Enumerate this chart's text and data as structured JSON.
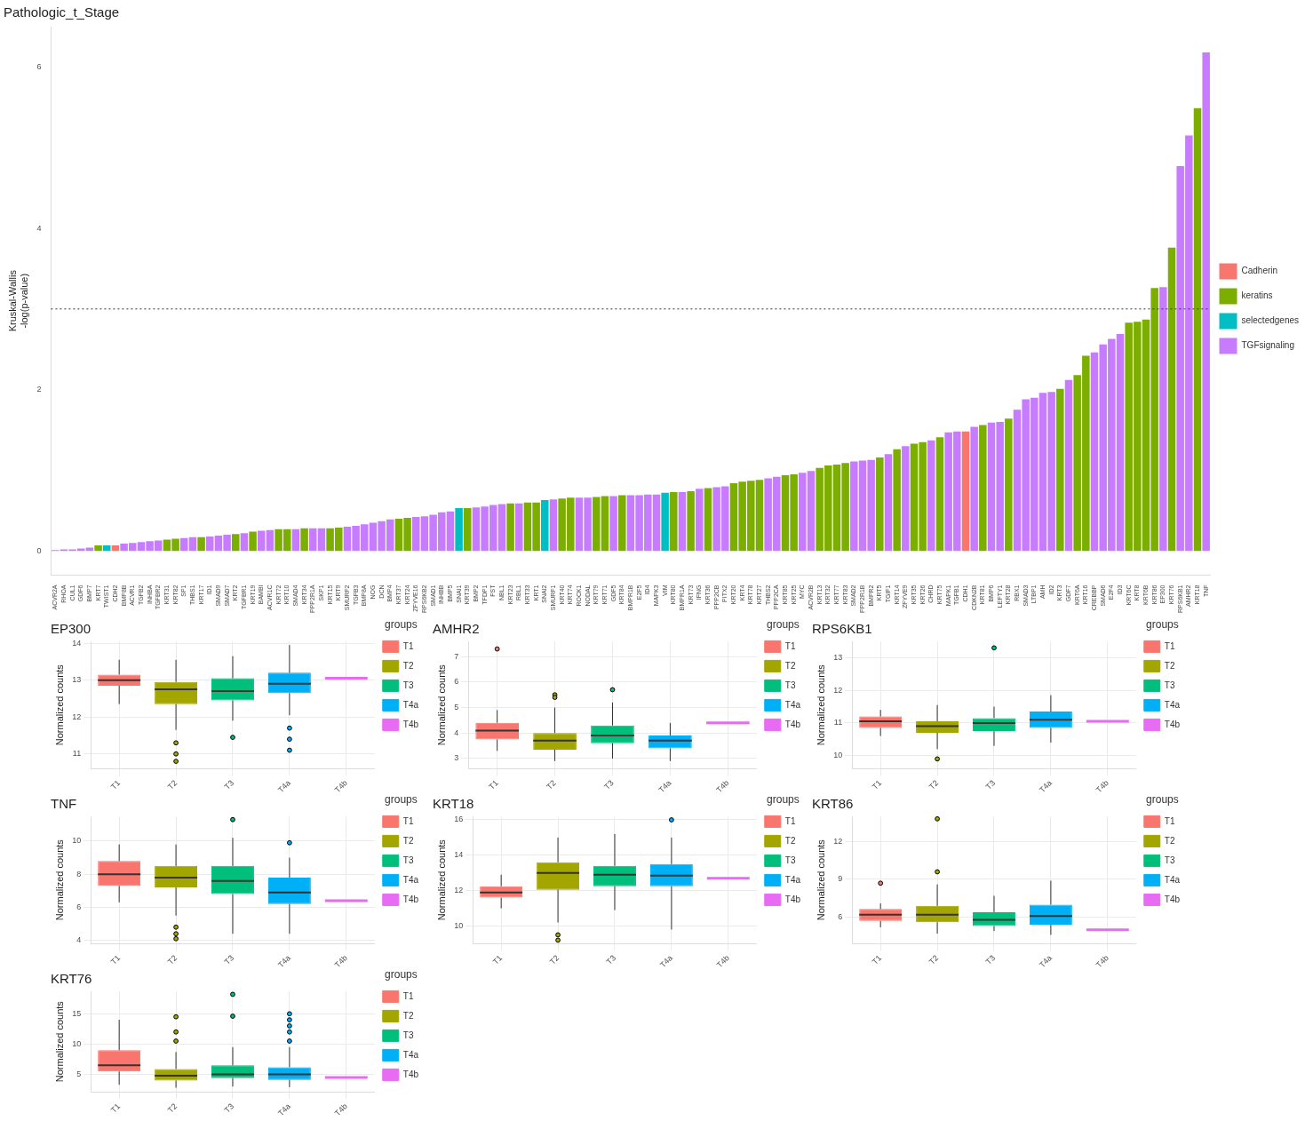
{
  "chart_data": [
    {
      "type": "bar",
      "title": "Pathologic_t_Stage",
      "ylabel": "Kruskal-Wallis\n-log(p-value)",
      "categories": [
        "ACVR2A",
        "RHOA",
        "CUL1",
        "GDF6",
        "BMP7",
        "KRT7",
        "TWIST1",
        "CDH2",
        "BMP8B",
        "ACVR1",
        "TGFB2",
        "INHBA",
        "TGFBR2",
        "KRT31",
        "KRT82",
        "SP1",
        "THBS1",
        "KRT17",
        "ID1",
        "SMAD9",
        "SMAD7",
        "KRT2",
        "TGFBR1",
        "KRT19",
        "BAMBI",
        "ACVR1C",
        "KRT72",
        "KRT10",
        "SMAD4",
        "KRT34",
        "PPP2R1A",
        "SKP1",
        "KRT15",
        "KRT9",
        "SMURF2",
        "TGFB3",
        "BMP8A",
        "NOG",
        "DCN",
        "BMP4",
        "KRT37",
        "KRT24",
        "ZFYVE16",
        "RPS6KB2",
        "SMAD1",
        "INHBB",
        "BMP5",
        "SNAI1",
        "KRT39",
        "BMP2",
        "TFDP1",
        "FST",
        "NBL1",
        "KRT23",
        "RBL1",
        "KRT33",
        "KRT1",
        "SNAI2",
        "SMURF1",
        "KRT40",
        "KRT74",
        "ROCK1",
        "NODAL",
        "KRT79",
        "KRT71",
        "GDF5",
        "KRT84",
        "BMPR1B",
        "E2F5",
        "ID4",
        "MAPK3",
        "VIM",
        "KRT80",
        "BMPR1A",
        "KRT73",
        "IFNG",
        "KRT36",
        "PPP2CB",
        "PITX2",
        "KRT20",
        "KRT4",
        "KRT78",
        "KRT27",
        "THBS2",
        "PPP2CA",
        "KRT85",
        "KRT25",
        "MYC",
        "ACVR2B",
        "KRT13",
        "KRT32",
        "KRT77",
        "KRT83",
        "SMAD2",
        "PPP2R1B",
        "BMPR2",
        "KRT5",
        "TGIF1",
        "KRT14",
        "ZFYVE9",
        "KRT35",
        "KRT26",
        "CHRD",
        "KRT75",
        "MAPK1",
        "TGFB1",
        "CDH1",
        "CDKN2B",
        "KRT81",
        "BMP6",
        "LEFTY1",
        "KRT28",
        "RBX1",
        "SMAD3",
        "LTBP1",
        "AMH",
        "ID2",
        "KRT3",
        "GDF7",
        "KRT6A",
        "KRT16",
        "CREBBP",
        "SMAD6",
        "E2F4",
        "ID3",
        "KRT6C",
        "KRT8",
        "KRT6B",
        "KRT86",
        "EP300",
        "KRT76",
        "RPS6KB1",
        "AMHR2",
        "KRT18",
        "TNF"
      ],
      "series": [
        {
          "name": "Cadherin",
          "color": "#f8766d",
          "values": [
            null,
            null,
            null,
            null,
            null,
            null,
            null,
            0.07,
            null,
            null,
            null,
            null,
            null,
            null,
            null,
            null,
            null,
            null,
            null,
            null,
            null,
            null,
            null,
            null,
            null,
            null,
            null,
            null,
            null,
            null,
            null,
            null,
            null,
            null,
            null,
            null,
            null,
            null,
            null,
            null,
            null,
            null,
            null,
            null,
            null,
            null,
            null,
            null,
            null,
            null,
            null,
            null,
            null,
            null,
            null,
            null,
            null,
            null,
            null,
            null,
            null,
            null,
            null,
            null,
            null,
            null,
            null,
            null,
            null,
            null,
            null,
            null,
            null,
            null,
            null,
            null,
            null,
            null,
            null,
            null,
            null,
            null,
            null,
            null,
            null,
            null,
            null,
            null,
            null,
            null,
            null,
            null,
            null,
            null,
            null,
            null,
            null,
            null,
            null,
            null,
            null,
            null,
            null,
            null,
            null,
            null,
            1.48,
            null,
            null,
            null,
            null,
            null,
            null,
            null,
            null,
            null,
            null,
            null,
            null,
            null,
            null,
            null,
            null,
            null,
            null,
            null,
            null,
            null,
            null,
            null,
            null,
            null,
            null,
            null,
            null
          ]
        },
        {
          "name": "keratins",
          "color": "#7cae00",
          "values": [
            null,
            null,
            null,
            null,
            null,
            0.07,
            null,
            null,
            null,
            null,
            null,
            null,
            null,
            0.14,
            0.15,
            null,
            null,
            0.17,
            null,
            null,
            null,
            0.21,
            null,
            0.24,
            null,
            null,
            0.27,
            0.27,
            null,
            0.28,
            null,
            null,
            0.28,
            0.29,
            null,
            null,
            null,
            null,
            null,
            null,
            0.4,
            0.41,
            null,
            null,
            null,
            null,
            null,
            null,
            0.53,
            null,
            null,
            null,
            null,
            0.59,
            null,
            0.6,
            0.6,
            null,
            null,
            0.65,
            0.66,
            null,
            null,
            0.67,
            0.68,
            null,
            0.69,
            null,
            null,
            null,
            null,
            null,
            0.73,
            null,
            0.74,
            null,
            0.78,
            null,
            null,
            0.84,
            0.86,
            0.87,
            0.88,
            null,
            null,
            0.94,
            0.95,
            null,
            null,
            1.03,
            1.06,
            1.07,
            1.09,
            null,
            null,
            null,
            1.16,
            null,
            1.26,
            null,
            1.33,
            1.35,
            null,
            1.41,
            null,
            null,
            null,
            null,
            1.56,
            null,
            null,
            1.64,
            null,
            null,
            null,
            null,
            null,
            2.01,
            null,
            2.18,
            2.42,
            null,
            null,
            null,
            null,
            2.83,
            2.84,
            2.87,
            3.26,
            null,
            3.76,
            null,
            null,
            5.49,
            null
          ]
        },
        {
          "name": "selectedgenes",
          "color": "#00bfc4",
          "values": [
            null,
            null,
            null,
            null,
            null,
            null,
            0.07,
            null,
            null,
            null,
            null,
            null,
            null,
            null,
            null,
            null,
            null,
            null,
            null,
            null,
            null,
            null,
            null,
            null,
            null,
            null,
            null,
            null,
            null,
            null,
            null,
            null,
            null,
            null,
            null,
            null,
            null,
            null,
            null,
            null,
            null,
            null,
            null,
            null,
            null,
            null,
            null,
            0.53,
            null,
            null,
            null,
            null,
            null,
            null,
            null,
            null,
            null,
            0.63,
            null,
            null,
            null,
            null,
            null,
            null,
            null,
            null,
            null,
            null,
            null,
            null,
            null,
            0.72,
            null,
            null,
            null,
            null,
            null,
            null,
            null,
            null,
            null,
            null,
            null,
            null,
            null,
            null,
            null,
            null,
            null,
            null,
            null,
            null,
            null,
            null,
            null,
            null,
            null,
            null,
            null,
            null,
            null,
            null,
            null,
            null,
            null,
            null,
            null,
            null,
            null,
            null,
            null,
            null,
            null,
            null,
            null,
            null,
            null,
            null,
            null,
            null,
            null,
            null,
            null,
            null,
            null,
            null,
            null,
            null,
            null,
            null,
            null,
            null,
            null,
            null,
            null
          ]
        },
        {
          "name": "TGFsignaling",
          "color": "#c77cff",
          "values": [
            0.01,
            0.02,
            0.02,
            0.03,
            0.04,
            null,
            null,
            null,
            0.09,
            0.1,
            0.11,
            0.12,
            0.13,
            null,
            null,
            0.16,
            0.17,
            null,
            0.18,
            0.19,
            0.2,
            null,
            0.22,
            null,
            0.25,
            0.26,
            null,
            null,
            0.27,
            null,
            0.28,
            0.28,
            null,
            null,
            0.3,
            0.31,
            0.33,
            0.35,
            0.37,
            0.39,
            null,
            null,
            0.42,
            0.43,
            0.45,
            0.48,
            0.49,
            null,
            null,
            0.54,
            0.55,
            0.57,
            0.58,
            null,
            0.59,
            null,
            null,
            null,
            0.64,
            null,
            null,
            0.66,
            0.66,
            null,
            null,
            0.68,
            null,
            0.69,
            0.69,
            0.7,
            0.7,
            null,
            null,
            0.73,
            null,
            0.77,
            null,
            0.79,
            0.8,
            null,
            null,
            null,
            null,
            0.9,
            0.92,
            null,
            null,
            0.97,
            0.99,
            null,
            null,
            null,
            null,
            1.11,
            1.12,
            1.13,
            null,
            1.2,
            null,
            1.3,
            null,
            null,
            1.37,
            null,
            1.47,
            1.48,
            null,
            1.54,
            null,
            1.59,
            1.6,
            null,
            1.75,
            1.88,
            1.9,
            1.96,
            1.97,
            null,
            2.12,
            null,
            null,
            2.46,
            2.56,
            2.63,
            2.69,
            null,
            null,
            null,
            null,
            3.27,
            null,
            4.77,
            5.15,
            null,
            6.18
          ]
        }
      ],
      "ylim": [
        -0.3,
        6.5
      ],
      "yticks": [
        0,
        2,
        4,
        6
      ],
      "ref_lines": [
        {
          "axis": "y",
          "value": 3,
          "line_style": "dotted"
        }
      ],
      "legend": "right",
      "grid": false
    },
    {
      "type": "box",
      "title": "EP300",
      "ylabel": "Normalized counts",
      "categories": [
        "T1",
        "T2",
        "T3",
        "T4a",
        "T4b"
      ],
      "legend": "right",
      "legend_title": "groups",
      "grid": true,
      "ylim": [
        10.6,
        14.05
      ],
      "yticks": [
        11,
        12,
        13,
        14
      ],
      "series": [
        {
          "name": "T1",
          "color": "#f8766d",
          "boxes": [
            {
              "low": 12.35,
              "q1": 12.85,
              "median": 13.0,
              "q3": 13.15,
              "high": 13.55
            },
            null,
            null,
            null,
            null
          ]
        },
        {
          "name": "T2",
          "color": "#a3a500",
          "boxes": [
            null,
            {
              "low": 11.65,
              "q1": 12.35,
              "median": 12.75,
              "q3": 12.95,
              "high": 13.55,
              "outliers": [
                11.3,
                11.0,
                10.8
              ]
            },
            null,
            null,
            null
          ]
        },
        {
          "name": "T3",
          "color": "#00bf7d",
          "boxes": [
            null,
            null,
            {
              "low": 11.9,
              "q1": 12.45,
              "median": 12.7,
              "q3": 13.05,
              "high": 13.65,
              "outliers": [
                11.45
              ]
            },
            null,
            null
          ]
        },
        {
          "name": "T4a",
          "color": "#00b0f6",
          "boxes": [
            null,
            null,
            null,
            {
              "low": 12.05,
              "q1": 12.65,
              "median": 12.9,
              "q3": 13.2,
              "high": 13.95,
              "outliers": [
                11.7,
                11.4,
                11.1
              ]
            },
            null
          ]
        },
        {
          "name": "T4b",
          "color": "#e76bf3",
          "boxes": [
            null,
            null,
            null,
            null,
            {
              "low": 13.05,
              "q1": 13.05,
              "median": 13.05,
              "q3": 13.05,
              "high": 13.05
            }
          ]
        }
      ]
    },
    {
      "type": "box",
      "title": "AMHR2",
      "ylabel": "Normalized counts",
      "categories": [
        "T1",
        "T2",
        "T3",
        "T4a",
        "T4b"
      ],
      "legend": "right",
      "legend_title": "groups",
      "grid": true,
      "ylim": [
        2.6,
        7.6
      ],
      "yticks": [
        3,
        4,
        5,
        6,
        7
      ],
      "series": [
        {
          "name": "T1",
          "color": "#f8766d",
          "boxes": [
            {
              "low": 3.3,
              "q1": 3.75,
              "median": 4.1,
              "q3": 4.4,
              "high": 4.9,
              "outliers": [
                7.3
              ]
            },
            null,
            null,
            null,
            null
          ]
        },
        {
          "name": "T2",
          "color": "#a3a500",
          "boxes": [
            null,
            {
              "low": 2.9,
              "q1": 3.35,
              "median": 3.7,
              "q3": 4.0,
              "high": 5.0,
              "outliers": [
                5.4,
                5.5
              ]
            },
            null,
            null,
            null
          ]
        },
        {
          "name": "T3",
          "color": "#00bf7d",
          "boxes": [
            null,
            null,
            {
              "low": 3.0,
              "q1": 3.6,
              "median": 3.9,
              "q3": 4.3,
              "high": 5.2,
              "outliers": [
                5.7
              ]
            },
            null,
            null
          ]
        },
        {
          "name": "T4a",
          "color": "#00b0f6",
          "boxes": [
            null,
            null,
            null,
            {
              "low": 2.9,
              "q1": 3.4,
              "median": 3.7,
              "q3": 3.9,
              "high": 4.4
            },
            null
          ]
        },
        {
          "name": "T4b",
          "color": "#e76bf3",
          "boxes": [
            null,
            null,
            null,
            null,
            {
              "low": 4.4,
              "q1": 4.4,
              "median": 4.4,
              "q3": 4.4,
              "high": 4.4
            }
          ]
        }
      ]
    },
    {
      "type": "box",
      "title": "RPS6KB1",
      "ylabel": "Normalized counts",
      "categories": [
        "T1",
        "T2",
        "T3",
        "T4a",
        "T4b"
      ],
      "legend": "right",
      "legend_title": "groups",
      "grid": true,
      "ylim": [
        9.6,
        13.5
      ],
      "yticks": [
        10,
        11,
        12,
        13
      ],
      "series": [
        {
          "name": "T1",
          "color": "#f8766d",
          "boxes": [
            {
              "low": 10.6,
              "q1": 10.85,
              "median": 11.05,
              "q3": 11.2,
              "high": 11.4
            },
            null,
            null,
            null,
            null
          ]
        },
        {
          "name": "T2",
          "color": "#a3a500",
          "boxes": [
            null,
            {
              "low": 10.2,
              "q1": 10.7,
              "median": 10.9,
              "q3": 11.05,
              "high": 11.55,
              "outliers": [
                9.9
              ]
            },
            null,
            null,
            null
          ]
        },
        {
          "name": "T3",
          "color": "#00bf7d",
          "boxes": [
            null,
            null,
            {
              "low": 10.3,
              "q1": 10.75,
              "median": 11.0,
              "q3": 11.15,
              "high": 11.5,
              "outliers": [
                13.3
              ]
            },
            null,
            null
          ]
        },
        {
          "name": "T4a",
          "color": "#00b0f6",
          "boxes": [
            null,
            null,
            null,
            {
              "low": 10.4,
              "q1": 10.85,
              "median": 11.1,
              "q3": 11.35,
              "high": 11.85
            },
            null
          ]
        },
        {
          "name": "T4b",
          "color": "#e76bf3",
          "boxes": [
            null,
            null,
            null,
            null,
            {
              "low": 11.05,
              "q1": 11.05,
              "median": 11.05,
              "q3": 11.05,
              "high": 11.05
            }
          ]
        }
      ]
    },
    {
      "type": "box",
      "title": "TNF",
      "ylabel": "Normalized counts",
      "categories": [
        "T1",
        "T2",
        "T3",
        "T4a",
        "T4b"
      ],
      "legend": "right",
      "legend_title": "groups",
      "grid": true,
      "ylim": [
        3.8,
        11.5
      ],
      "yticks": [
        4,
        6,
        8,
        10
      ],
      "series": [
        {
          "name": "T1",
          "color": "#f8766d",
          "boxes": [
            {
              "low": 6.3,
              "q1": 7.3,
              "median": 8.0,
              "q3": 8.8,
              "high": 9.8
            },
            null,
            null,
            null,
            null
          ]
        },
        {
          "name": "T2",
          "color": "#a3a500",
          "boxes": [
            null,
            {
              "low": 5.5,
              "q1": 7.2,
              "median": 7.8,
              "q3": 8.5,
              "high": 9.8,
              "outliers": [
                4.8,
                4.4,
                4.1
              ]
            },
            null,
            null,
            null
          ]
        },
        {
          "name": "T3",
          "color": "#00bf7d",
          "boxes": [
            null,
            null,
            {
              "low": 4.4,
              "q1": 6.8,
              "median": 7.6,
              "q3": 8.5,
              "high": 10.2,
              "outliers": [
                11.3
              ]
            },
            null,
            null
          ]
        },
        {
          "name": "T4a",
          "color": "#00b0f6",
          "boxes": [
            null,
            null,
            null,
            {
              "low": 4.4,
              "q1": 6.2,
              "median": 6.9,
              "q3": 7.8,
              "high": 9.0,
              "outliers": [
                9.9
              ]
            },
            null
          ]
        },
        {
          "name": "T4b",
          "color": "#e76bf3",
          "boxes": [
            null,
            null,
            null,
            null,
            {
              "low": 6.4,
              "q1": 6.4,
              "median": 6.4,
              "q3": 6.4,
              "high": 6.4
            }
          ]
        }
      ]
    },
    {
      "type": "box",
      "title": "KRT18",
      "ylabel": "Normalized counts",
      "categories": [
        "T1",
        "T2",
        "T3",
        "T4a",
        "T4b"
      ],
      "legend": "right",
      "legend_title": "groups",
      "grid": true,
      "ylim": [
        9,
        16.2
      ],
      "yticks": [
        10,
        12,
        14,
        16
      ],
      "series": [
        {
          "name": "T1",
          "color": "#f8766d",
          "boxes": [
            {
              "low": 11.0,
              "q1": 11.6,
              "median": 11.9,
              "q3": 12.25,
              "high": 12.9
            },
            null,
            null,
            null,
            null
          ]
        },
        {
          "name": "T2",
          "color": "#a3a500",
          "boxes": [
            null,
            {
              "low": 10.2,
              "q1": 12.05,
              "median": 13.0,
              "q3": 13.6,
              "high": 15.0,
              "outliers": [
                9.5,
                9.2
              ]
            },
            null,
            null,
            null
          ]
        },
        {
          "name": "T3",
          "color": "#00bf7d",
          "boxes": [
            null,
            null,
            {
              "low": 10.9,
              "q1": 12.25,
              "median": 12.9,
              "q3": 13.4,
              "high": 15.2
            },
            null,
            null
          ]
        },
        {
          "name": "T4a",
          "color": "#00b0f6",
          "boxes": [
            null,
            null,
            null,
            {
              "low": 9.8,
              "q1": 12.25,
              "median": 12.85,
              "q3": 13.5,
              "high": 15.0,
              "outliers": [
                16.0
              ]
            },
            null
          ]
        },
        {
          "name": "T4b",
          "color": "#e76bf3",
          "boxes": [
            null,
            null,
            null,
            null,
            {
              "low": 12.7,
              "q1": 12.7,
              "median": 12.7,
              "q3": 12.7,
              "high": 12.7
            }
          ]
        }
      ]
    },
    {
      "type": "box",
      "title": "KRT86",
      "ylabel": "Normalized counts",
      "categories": [
        "T1",
        "T2",
        "T3",
        "T4a",
        "T4b"
      ],
      "legend": "right",
      "legend_title": "groups",
      "grid": true,
      "ylim": [
        3.9,
        14
      ],
      "yticks": [
        6,
        9,
        12
      ],
      "series": [
        {
          "name": "T1",
          "color": "#f8766d",
          "boxes": [
            {
              "low": 5.2,
              "q1": 5.7,
              "median": 6.2,
              "q3": 6.65,
              "high": 7.1,
              "outliers": [
                8.7
              ]
            },
            null,
            null,
            null,
            null
          ]
        },
        {
          "name": "T2",
          "color": "#a3a500",
          "boxes": [
            null,
            {
              "low": 4.7,
              "q1": 5.6,
              "median": 6.2,
              "q3": 6.9,
              "high": 8.6,
              "outliers": [
                9.6,
                13.8
              ]
            },
            null,
            null,
            null
          ]
        },
        {
          "name": "T3",
          "color": "#00bf7d",
          "boxes": [
            null,
            null,
            {
              "low": 4.9,
              "q1": 5.3,
              "median": 5.8,
              "q3": 6.4,
              "high": 7.7
            },
            null,
            null
          ]
        },
        {
          "name": "T4a",
          "color": "#00b0f6",
          "boxes": [
            null,
            null,
            null,
            {
              "low": 4.6,
              "q1": 5.4,
              "median": 6.1,
              "q3": 7.0,
              "high": 8.9
            },
            null
          ]
        },
        {
          "name": "T4b",
          "color": "#e76bf3",
          "boxes": [
            null,
            null,
            null,
            null,
            {
              "low": 5.0,
              "q1": 5.0,
              "median": 5.0,
              "q3": 5.0,
              "high": 5.0
            }
          ]
        }
      ]
    },
    {
      "type": "box",
      "title": "KRT76",
      "ylabel": "Normalized counts",
      "categories": [
        "T1",
        "T2",
        "T3",
        "T4a",
        "T4b"
      ],
      "legend": "right",
      "legend_title": "groups",
      "grid": true,
      "ylim": [
        2.1,
        18.7
      ],
      "yticks": [
        5,
        10,
        15
      ],
      "series": [
        {
          "name": "T1",
          "color": "#f8766d",
          "boxes": [
            {
              "low": 3.3,
              "q1": 5.5,
              "median": 6.5,
              "q3": 9.0,
              "high": 14.0
            },
            null,
            null,
            null,
            null
          ]
        },
        {
          "name": "T2",
          "color": "#a3a500",
          "boxes": [
            null,
            {
              "low": 2.8,
              "q1": 4.0,
              "median": 4.8,
              "q3": 5.9,
              "high": 8.7,
              "outliers": [
                10.5,
                12.0,
                14.5
              ]
            },
            null,
            null,
            null
          ]
        },
        {
          "name": "T3",
          "color": "#00bf7d",
          "boxes": [
            null,
            null,
            {
              "low": 3.0,
              "q1": 4.4,
              "median": 5.0,
              "q3": 6.5,
              "high": 9.5,
              "outliers": [
                14.6,
                18.2
              ]
            },
            null,
            null
          ]
        },
        {
          "name": "T4a",
          "color": "#00b0f6",
          "boxes": [
            null,
            null,
            null,
            {
              "low": 2.9,
              "q1": 4.1,
              "median": 5.0,
              "q3": 6.2,
              "high": 9.5,
              "outliers": [
                10.5,
                12.0,
                13.0,
                14.0,
                15.0
              ]
            },
            null
          ]
        },
        {
          "name": "T4b",
          "color": "#e76bf3",
          "boxes": [
            null,
            null,
            null,
            null,
            {
              "low": 4.5,
              "q1": 4.5,
              "median": 4.5,
              "q3": 4.5,
              "high": 4.5
            }
          ]
        }
      ]
    }
  ]
}
